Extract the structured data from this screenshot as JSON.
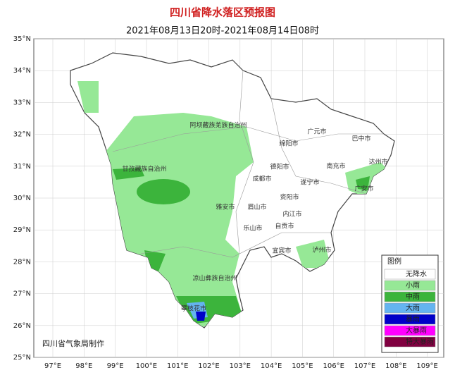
{
  "header": {
    "title": "四川省降水落区预报图",
    "subtitle": "2021年08月13日20时-2021年08月14日08时"
  },
  "axes": {
    "lat_ticks": [
      {
        "value": 35,
        "label": "35°N"
      },
      {
        "value": 34,
        "label": "34°N"
      },
      {
        "value": 33,
        "label": "33°N"
      },
      {
        "value": 32,
        "label": "32°N"
      },
      {
        "value": 31,
        "label": "31°N"
      },
      {
        "value": 30,
        "label": "30°N"
      },
      {
        "value": 29,
        "label": "29°N"
      },
      {
        "value": 28,
        "label": "28°N"
      },
      {
        "value": 27,
        "label": "27°N"
      },
      {
        "value": 26,
        "label": "26°N"
      },
      {
        "value": 25,
        "label": "25°N"
      }
    ],
    "lon_ticks": [
      {
        "value": 97,
        "label": "97°E"
      },
      {
        "value": 98,
        "label": "98°E"
      },
      {
        "value": 99,
        "label": "99°E"
      },
      {
        "value": 100,
        "label": "100°E"
      },
      {
        "value": 101,
        "label": "101°E"
      },
      {
        "value": 102,
        "label": "102°E"
      },
      {
        "value": 103,
        "label": "103°E"
      },
      {
        "value": 104,
        "label": "104°E"
      },
      {
        "value": 105,
        "label": "105°E"
      },
      {
        "value": 106,
        "label": "106°E"
      },
      {
        "value": 107,
        "label": "107°E"
      },
      {
        "value": 108,
        "label": "108°E"
      },
      {
        "value": 109,
        "label": "109°E"
      }
    ]
  },
  "regions": [
    "阿坝藏族羌族自治州",
    "甘孜藏族自治州",
    "凉山彝族自治州",
    "攀枝花市",
    "广元市",
    "巴中市",
    "绵阳市",
    "达州市",
    "德阳市",
    "南充市",
    "成都市",
    "遂宁市",
    "广安市",
    "资阳市",
    "雅安市",
    "眉山市",
    "内江市",
    "乐山市",
    "自贡市",
    "宜宾市",
    "泸州市"
  ],
  "legend": {
    "title": "图例",
    "items": [
      {
        "label": "无降水",
        "color": "#ffffff"
      },
      {
        "label": "小雨",
        "color": "#96e896"
      },
      {
        "label": "中雨",
        "color": "#3cb43c"
      },
      {
        "label": "大雨",
        "color": "#64b4f0"
      },
      {
        "label": "暴雨",
        "color": "#0000c8"
      },
      {
        "label": "大暴雨",
        "color": "#ff00ff"
      },
      {
        "label": "特大暴雨",
        "color": "#800040"
      }
    ]
  },
  "footer": "四川省气象局制作"
}
